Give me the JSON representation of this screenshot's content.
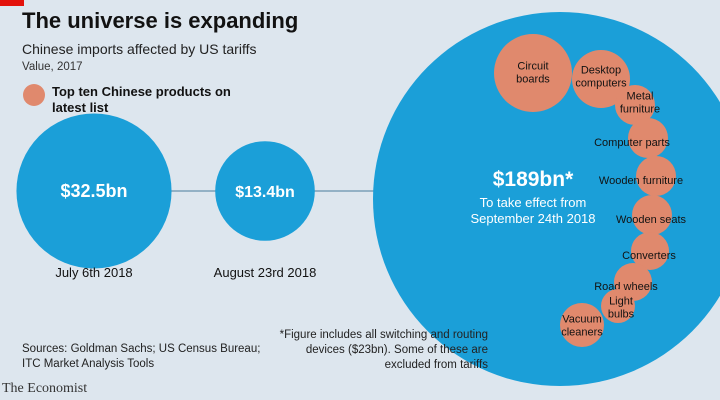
{
  "header": {
    "title": "The universe is expanding",
    "subtitle": "Chinese imports affected by US tariffs",
    "unit": "Value, 2017"
  },
  "legend": {
    "label": "Top ten Chinese products on latest list"
  },
  "colors": {
    "tranche": "#1b9fd8",
    "product": "#e0896d",
    "background": "#dde6ee",
    "connector": "#7b9fb7",
    "brand_red": "#e3120b"
  },
  "chart_data": {
    "type": "bubble",
    "title": "The universe is expanding",
    "subtitle": "Chinese imports affected by US tariffs",
    "unit": "Value, 2017",
    "tranches": [
      {
        "value_label": "$32.5bn",
        "value_bn": 32.5,
        "date_label": "July 6th 2018"
      },
      {
        "value_label": "$13.4bn",
        "value_bn": 13.4,
        "date_label": "August 23rd 2018"
      },
      {
        "value_label": "$189bn*",
        "value_bn": 189,
        "caption_line1": "To take effect from",
        "caption_line2": "September 24th 2018"
      }
    ],
    "top_products": [
      {
        "lines": [
          "Circuit",
          "boards"
        ]
      },
      {
        "lines": [
          "Desktop",
          "computers"
        ]
      },
      {
        "lines": [
          "Metal",
          "furniture"
        ]
      },
      {
        "lines": [
          "Computer parts"
        ]
      },
      {
        "lines": [
          "Wooden furniture"
        ]
      },
      {
        "lines": [
          "Wooden seats"
        ]
      },
      {
        "lines": [
          "Converters"
        ]
      },
      {
        "lines": [
          "Road wheels"
        ]
      },
      {
        "lines": [
          "Light",
          "bulbs"
        ]
      },
      {
        "lines": [
          "Vacuum",
          "cleaners"
        ]
      }
    ],
    "footnote": "*Figure includes all switching and routing devices ($23bn). Some of these are excluded from tariffs",
    "source": "Sources: Goldman Sachs; US Census Bureau; ITC Market Analysis Tools"
  },
  "footer": {
    "brand": "The Economist"
  }
}
